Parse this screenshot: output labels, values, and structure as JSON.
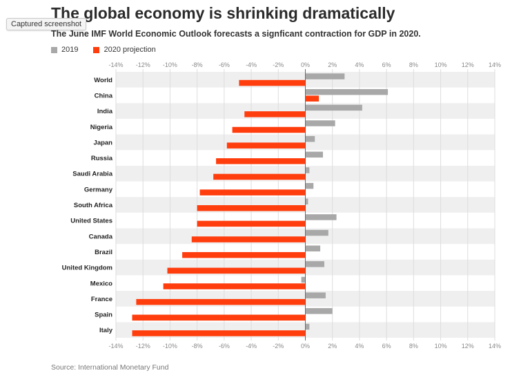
{
  "header": {
    "title": "The global economy is shrinking dramatically",
    "subtitle": "The June IMF World Economic Outlook forecasts a signficant contraction for GDP in 2020.",
    "tooltip": "Captured screenshot"
  },
  "footer": {
    "source": "Source: International Monetary Fund"
  },
  "colors": {
    "series_2019": "#a8a8a8",
    "series_2020": "#ff3d0d",
    "band": "#efefef",
    "grid": "#dddddd",
    "zero_line": "#666666"
  },
  "chart_data": {
    "type": "bar",
    "orientation": "horizontal",
    "categories": [
      "World",
      "China",
      "India",
      "Nigeria",
      "Japan",
      "Russia",
      "Saudi Arabia",
      "Germany",
      "South Africa",
      "United States",
      "Canada",
      "Brazil",
      "United Kingdom",
      "Mexico",
      "France",
      "Spain",
      "Italy"
    ],
    "series": [
      {
        "name": "2019",
        "values": [
          2.9,
          6.1,
          4.2,
          2.2,
          0.7,
          1.3,
          0.3,
          0.6,
          0.2,
          2.3,
          1.7,
          1.1,
          1.4,
          -0.3,
          1.5,
          2.0,
          0.3
        ]
      },
      {
        "name": "2020 projection",
        "values": [
          -4.9,
          1.0,
          -4.5,
          -5.4,
          -5.8,
          -6.6,
          -6.8,
          -7.8,
          -8.0,
          -8.0,
          -8.4,
          -9.1,
          -10.2,
          -10.5,
          -12.5,
          -12.8,
          -12.8
        ]
      }
    ],
    "xlim": [
      -14,
      14
    ],
    "xticks": [
      -14,
      -12,
      -10,
      -8,
      -6,
      -4,
      -2,
      0,
      2,
      4,
      6,
      8,
      10,
      12,
      14
    ],
    "tick_suffix": "%",
    "grid": true,
    "legend_position": "top-left"
  }
}
